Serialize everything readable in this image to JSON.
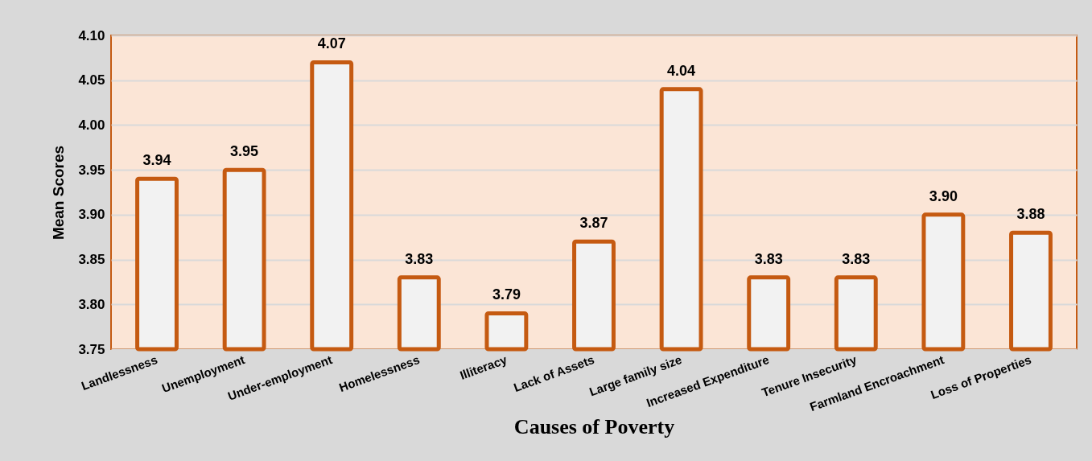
{
  "chart_data": {
    "type": "bar",
    "xlabel": "Causes of Poverty",
    "ylabel": "Mean Scores",
    "categories": [
      "Landlessness",
      "Unemployment",
      "Under-employment",
      "Homelessness",
      "Illiteracy",
      "Lack of Assets",
      "Large family size",
      "Increased Expenditure",
      "Tenure Insecurity",
      "Farmland Encroachment",
      "Loss of Properties"
    ],
    "values": [
      3.94,
      3.95,
      4.07,
      3.83,
      3.79,
      3.87,
      4.04,
      3.83,
      3.83,
      3.9,
      3.88
    ],
    "value_labels": [
      "3.94",
      "3.95",
      "4.07",
      "3.83",
      "3.79",
      "3.87",
      "4.04",
      "3.83",
      "3.83",
      "3.90",
      "3.88"
    ],
    "color": "#f2f2f2",
    "ylim": [
      3.75,
      4.1
    ],
    "yticks": [
      3.75,
      {
        "value": 3.8,
        "label": "3.80"
      },
      3.85,
      {
        "value": 3.9,
        "label": "3.90"
      },
      3.95,
      {
        "value": 4.0,
        "label": "4.00"
      },
      4.05,
      {
        "value": 4.1,
        "label": "4.10"
      }
    ],
    "grid": "y"
  }
}
